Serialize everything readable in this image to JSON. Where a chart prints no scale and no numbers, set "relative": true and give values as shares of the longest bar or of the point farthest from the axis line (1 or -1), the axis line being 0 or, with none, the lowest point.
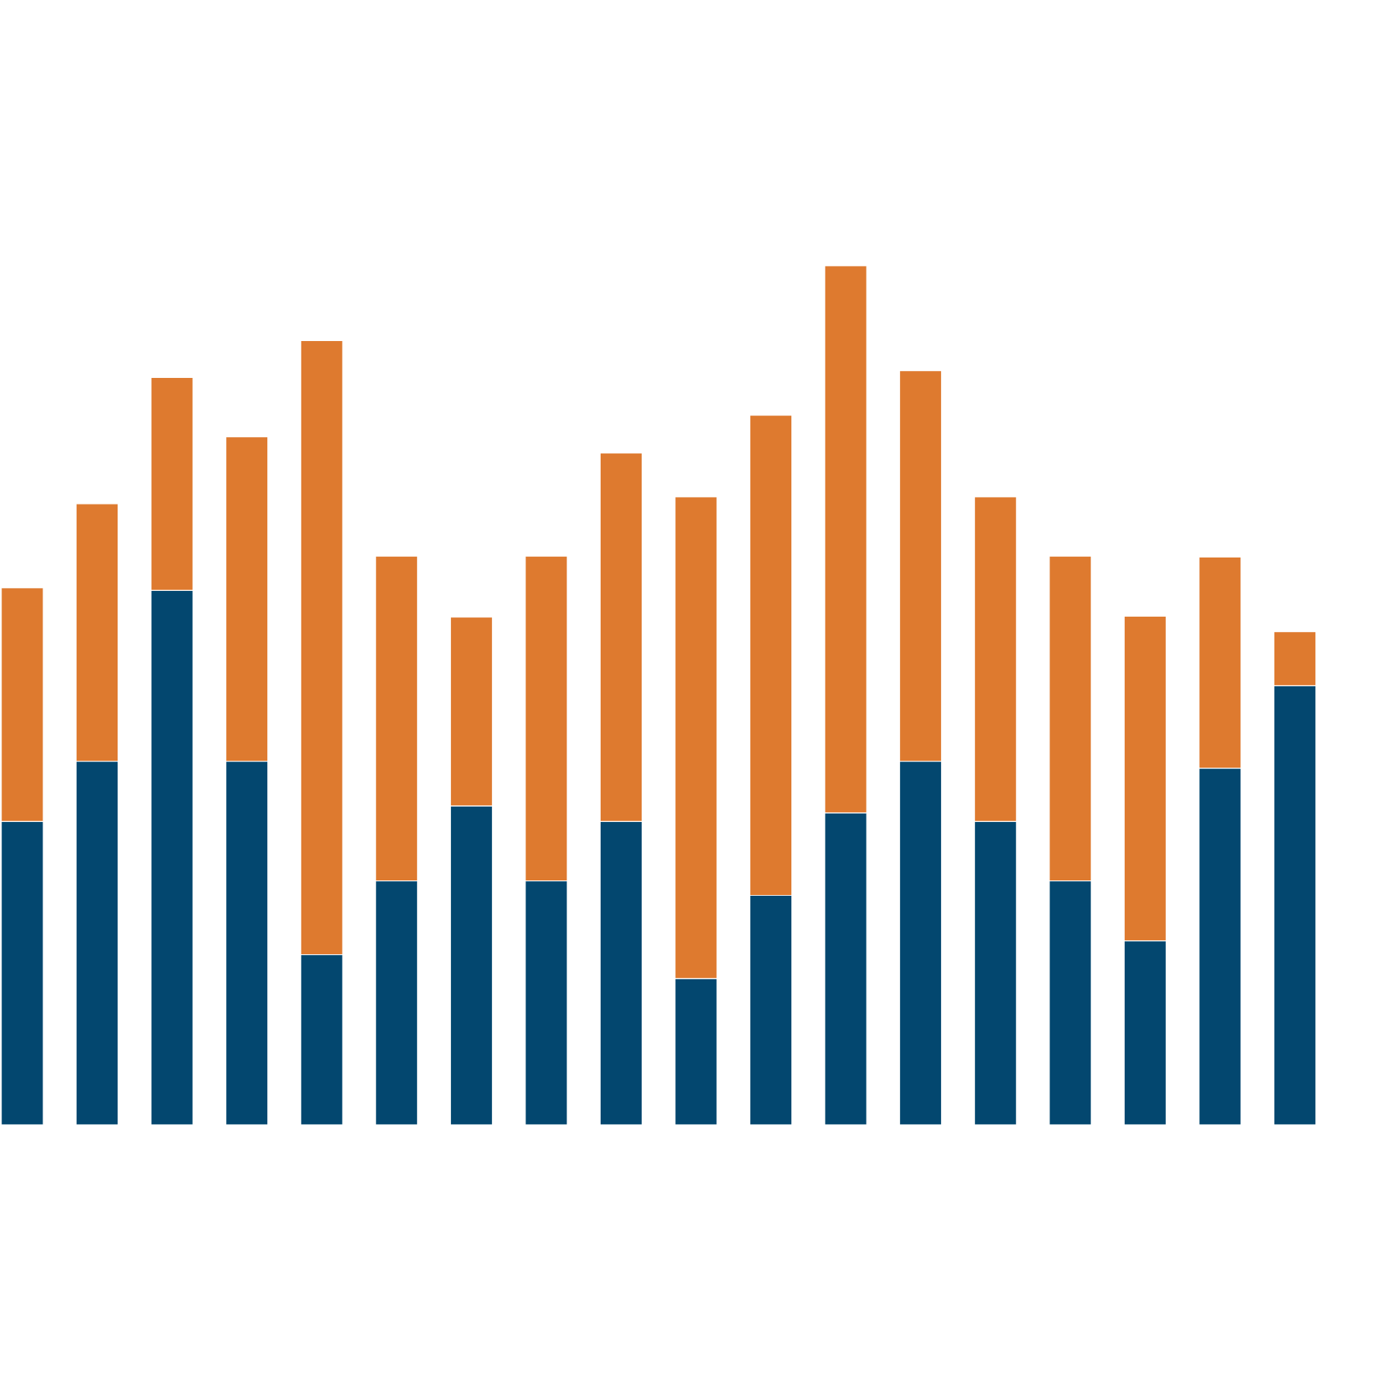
{
  "chart_data": {
    "type": "bar",
    "stacked": true,
    "relative": true,
    "categories": [
      null,
      null,
      null,
      null,
      null,
      null,
      null,
      null,
      null,
      null,
      null,
      null,
      null,
      null,
      null,
      null,
      null,
      null
    ],
    "series": [
      {
        "color": "#03476f",
        "values": [
          0.353,
          0.423,
          0.622,
          0.423,
          0.198,
          0.284,
          0.371,
          0.284,
          0.353,
          0.17,
          0.267,
          0.363,
          0.423,
          0.353,
          0.284,
          0.214,
          0.415,
          0.511
        ]
      },
      {
        "color": "#de7a2f",
        "values": [
          0.272,
          0.3,
          0.248,
          0.378,
          0.715,
          0.378,
          0.22,
          0.378,
          0.429,
          0.561,
          0.559,
          0.637,
          0.455,
          0.378,
          0.378,
          0.378,
          0.246,
          0.063
        ]
      }
    ]
  }
}
